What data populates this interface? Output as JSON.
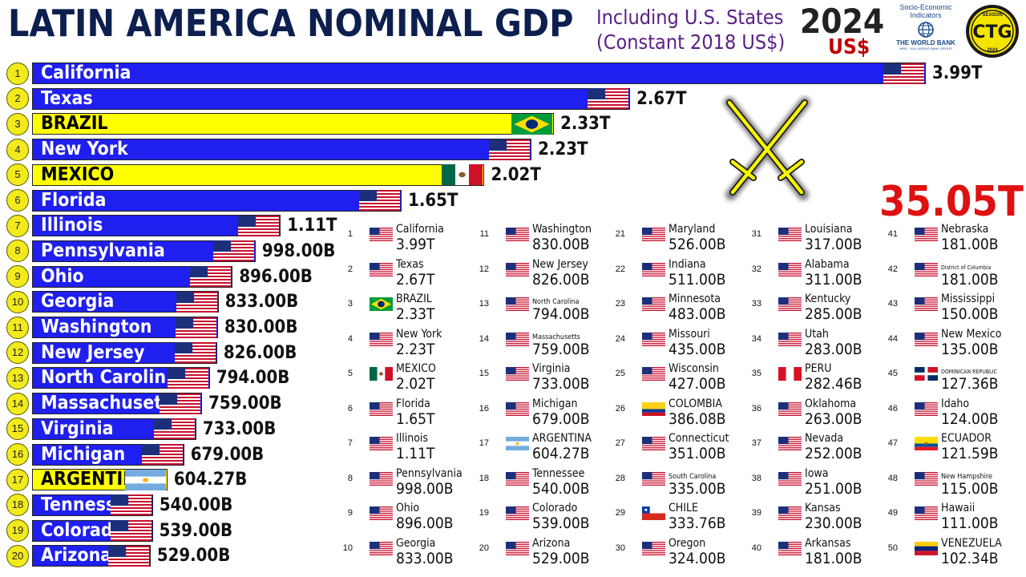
{
  "header": {
    "title": "LATIN AMERICA NOMINAL GDP",
    "subtitle_line1": "Including U.S. States",
    "subtitle_line2": "(Constant 2018 US$)",
    "year": "2024",
    "currency": "US$",
    "worldbank_top1": "Socio-Economic",
    "worldbank_top2": "Indicators",
    "worldbank_name": "THE WORLD BANK",
    "worldbank_sub": "IBRD · IDA | WORLD BANK GROUP",
    "logo_season": "SEASON",
    "logo_text": "CTG",
    "logo_year": "2024",
    "total": "35.05T"
  },
  "colors": {
    "us_state_bar": "#1f1fef",
    "latam_bar": "#ffff00",
    "us_state_text": "#ffffff",
    "latam_text": "#000000",
    "rank_circle": "#f2ea1c",
    "total": "#e01010",
    "swords": "#f5f500"
  },
  "chart_data": {
    "type": "bar",
    "orientation": "horizontal",
    "title": "LATIN AMERICA NOMINAL GDP",
    "unit": "US$",
    "year": "2024",
    "bars": [
      {
        "rank": "1",
        "name": "California",
        "value": 3.99,
        "label": "3.99T",
        "flag": "us",
        "group": "us"
      },
      {
        "rank": "2",
        "name": "Texas",
        "value": 2.67,
        "label": "2.67T",
        "flag": "us",
        "group": "us"
      },
      {
        "rank": "3",
        "name": "BRAZIL",
        "value": 2.33,
        "label": "2.33T",
        "flag": "br",
        "group": "latam"
      },
      {
        "rank": "4",
        "name": "New York",
        "value": 2.23,
        "label": "2.23T",
        "flag": "us",
        "group": "us"
      },
      {
        "rank": "5",
        "name": "MEXICO",
        "value": 2.02,
        "label": "2.02T",
        "flag": "mx",
        "group": "latam"
      },
      {
        "rank": "6",
        "name": "Florida",
        "value": 1.65,
        "label": "1.65T",
        "flag": "us",
        "group": "us"
      },
      {
        "rank": "7",
        "name": "Illinois",
        "value": 1.11,
        "label": "1.11T",
        "flag": "us",
        "group": "us"
      },
      {
        "rank": "8",
        "name": "Pennsylvania",
        "value": 0.998,
        "label": "998.00B",
        "flag": "us",
        "group": "us"
      },
      {
        "rank": "9",
        "name": "Ohio",
        "value": 0.896,
        "label": "896.00B",
        "flag": "us",
        "group": "us"
      },
      {
        "rank": "10",
        "name": "Georgia",
        "value": 0.833,
        "label": "833.00B",
        "flag": "us",
        "group": "us"
      },
      {
        "rank": "11",
        "name": "Washington",
        "value": 0.83,
        "label": "830.00B",
        "flag": "us",
        "group": "us"
      },
      {
        "rank": "12",
        "name": "New Jersey",
        "value": 0.826,
        "label": "826.00B",
        "flag": "us",
        "group": "us"
      },
      {
        "rank": "13",
        "name": "North Carolin",
        "value": 0.794,
        "label": "794.00B",
        "flag": "us",
        "group": "us"
      },
      {
        "rank": "14",
        "name": "Massachuset",
        "value": 0.759,
        "label": "759.00B",
        "flag": "us",
        "group": "us"
      },
      {
        "rank": "15",
        "name": "Virginia",
        "value": 0.733,
        "label": "733.00B",
        "flag": "us",
        "group": "us"
      },
      {
        "rank": "16",
        "name": "Michigan",
        "value": 0.679,
        "label": "679.00B",
        "flag": "us",
        "group": "us"
      },
      {
        "rank": "17",
        "name": "ARGENTIN",
        "value": 0.60427,
        "label": "604.27B",
        "flag": "ar",
        "group": "latam"
      },
      {
        "rank": "18",
        "name": "Tenness",
        "value": 0.54,
        "label": "540.00B",
        "flag": "us",
        "group": "us"
      },
      {
        "rank": "19",
        "name": "Colorad",
        "value": 0.539,
        "label": "539.00B",
        "flag": "us",
        "group": "us"
      },
      {
        "rank": "20",
        "name": "Arizona",
        "value": 0.529,
        "label": "529.00B",
        "flag": "us",
        "group": "us"
      }
    ],
    "table": [
      {
        "rank": "1",
        "name": "California",
        "value": "3.99T",
        "flag": "us"
      },
      {
        "rank": "2",
        "name": "Texas",
        "value": "2.67T",
        "flag": "us"
      },
      {
        "rank": "3",
        "name": "BRAZIL",
        "value": "2.33T",
        "flag": "br"
      },
      {
        "rank": "4",
        "name": "New York",
        "value": "2.23T",
        "flag": "us"
      },
      {
        "rank": "5",
        "name": "MEXICO",
        "value": "2.02T",
        "flag": "mx"
      },
      {
        "rank": "6",
        "name": "Florida",
        "value": "1.65T",
        "flag": "us"
      },
      {
        "rank": "7",
        "name": "Illinois",
        "value": "1.11T",
        "flag": "us"
      },
      {
        "rank": "8",
        "name": "Pennsylvania",
        "value": "998.00B",
        "flag": "us"
      },
      {
        "rank": "9",
        "name": "Ohio",
        "value": "896.00B",
        "flag": "us"
      },
      {
        "rank": "10",
        "name": "Georgia",
        "value": "833.00B",
        "flag": "us"
      },
      {
        "rank": "11",
        "name": "Washington",
        "value": "830.00B",
        "flag": "us"
      },
      {
        "rank": "12",
        "name": "New Jersey",
        "value": "826.00B",
        "flag": "us"
      },
      {
        "rank": "13",
        "name": "North Carolina",
        "value": "794.00B",
        "flag": "us"
      },
      {
        "rank": "14",
        "name": "Massachusetts",
        "value": "759.00B",
        "flag": "us"
      },
      {
        "rank": "15",
        "name": "Virginia",
        "value": "733.00B",
        "flag": "us"
      },
      {
        "rank": "16",
        "name": "Michigan",
        "value": "679.00B",
        "flag": "us"
      },
      {
        "rank": "17",
        "name": "ARGENTINA",
        "value": "604.27B",
        "flag": "ar"
      },
      {
        "rank": "18",
        "name": "Tennessee",
        "value": "540.00B",
        "flag": "us"
      },
      {
        "rank": "19",
        "name": "Colorado",
        "value": "539.00B",
        "flag": "us"
      },
      {
        "rank": "20",
        "name": "Arizona",
        "value": "529.00B",
        "flag": "us"
      },
      {
        "rank": "21",
        "name": "Maryland",
        "value": "526.00B",
        "flag": "us"
      },
      {
        "rank": "22",
        "name": "Indiana",
        "value": "511.00B",
        "flag": "us"
      },
      {
        "rank": "23",
        "name": "Minnesota",
        "value": "483.00B",
        "flag": "us"
      },
      {
        "rank": "24",
        "name": "Missouri",
        "value": "435.00B",
        "flag": "us"
      },
      {
        "rank": "25",
        "name": "Wisconsin",
        "value": "427.00B",
        "flag": "us"
      },
      {
        "rank": "26",
        "name": "COLOMBIA",
        "value": "386.08B",
        "flag": "co"
      },
      {
        "rank": "27",
        "name": "Connecticut",
        "value": "351.00B",
        "flag": "us"
      },
      {
        "rank": "28",
        "name": "South Carolina",
        "value": "335.00B",
        "flag": "us"
      },
      {
        "rank": "29",
        "name": "CHILE",
        "value": "333.76B",
        "flag": "cl"
      },
      {
        "rank": "30",
        "name": "Oregon",
        "value": "324.00B",
        "flag": "us"
      },
      {
        "rank": "31",
        "name": "Louisiana",
        "value": "317.00B",
        "flag": "us"
      },
      {
        "rank": "32",
        "name": "Alabama",
        "value": "311.00B",
        "flag": "us"
      },
      {
        "rank": "33",
        "name": "Kentucky",
        "value": "285.00B",
        "flag": "us"
      },
      {
        "rank": "34",
        "name": "Utah",
        "value": "283.00B",
        "flag": "us"
      },
      {
        "rank": "35",
        "name": "PERU",
        "value": "282.46B",
        "flag": "pe"
      },
      {
        "rank": "36",
        "name": "Oklahoma",
        "value": "263.00B",
        "flag": "us"
      },
      {
        "rank": "37",
        "name": "Nevada",
        "value": "252.00B",
        "flag": "us"
      },
      {
        "rank": "38",
        "name": "Iowa",
        "value": "251.00B",
        "flag": "us"
      },
      {
        "rank": "39",
        "name": "Kansas",
        "value": "230.00B",
        "flag": "us"
      },
      {
        "rank": "40",
        "name": "Arkansas",
        "value": "181.00B",
        "flag": "us"
      },
      {
        "rank": "41",
        "name": "Nebraska",
        "value": "181.00B",
        "flag": "us"
      },
      {
        "rank": "42",
        "name": "District of Columbia",
        "value": "181.00B",
        "flag": "us"
      },
      {
        "rank": "43",
        "name": "Mississippi",
        "value": "150.00B",
        "flag": "us"
      },
      {
        "rank": "44",
        "name": "New Mexico",
        "value": "135.00B",
        "flag": "us"
      },
      {
        "rank": "45",
        "name": "DOMINICAN REPUBLIC",
        "value": "127.36B",
        "flag": "do"
      },
      {
        "rank": "46",
        "name": "Idaho",
        "value": "124.00B",
        "flag": "us"
      },
      {
        "rank": "47",
        "name": "ECUADOR",
        "value": "121.59B",
        "flag": "ec"
      },
      {
        "rank": "48",
        "name": "New Hampshire",
        "value": "115.00B",
        "flag": "us"
      },
      {
        "rank": "49",
        "name": "Hawaii",
        "value": "111.00B",
        "flag": "us"
      },
      {
        "rank": "50",
        "name": "VENEZUELA",
        "value": "102.34B",
        "flag": "ve"
      }
    ]
  }
}
